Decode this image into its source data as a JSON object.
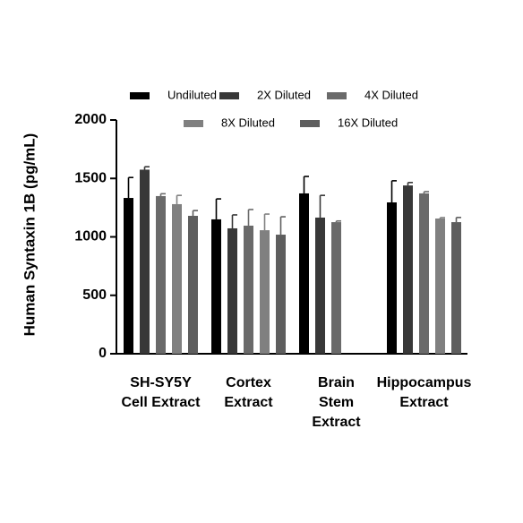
{
  "chart_data": {
    "type": "bar",
    "y_label": "Human Syntaxin 1B (pg/mL)",
    "categories": [
      [
        "SH-SY5Y",
        "Cell Extract"
      ],
      [
        "Cortex",
        "Extract"
      ],
      [
        "Brain",
        "Stem",
        "Extract"
      ],
      [
        "Hippocampus",
        "Extract"
      ]
    ],
    "series": [
      {
        "name": "Undiluted",
        "color": "#000000",
        "values": [
          1333,
          1150,
          1372,
          1295
        ],
        "errors": [
          175,
          175,
          145,
          185
        ]
      },
      {
        "name": "2X Diluted",
        "color": "#383838",
        "values": [
          1575,
          1073,
          1165,
          1440
        ],
        "errors": [
          25,
          115,
          190,
          25
        ]
      },
      {
        "name": "4X Diluted",
        "color": "#6a6a6a",
        "values": [
          1349,
          1096,
          1126,
          1372
        ],
        "errors": [
          20,
          138,
          10,
          15
        ]
      },
      {
        "name": "8X Diluted",
        "color": "#808080",
        "values": [
          1280,
          1057,
          null,
          1157
        ],
        "errors": [
          75,
          138,
          null,
          8
        ]
      },
      {
        "name": "16X Diluted",
        "color": "#5e5e5e",
        "values": [
          1180,
          1019,
          null,
          1126
        ],
        "errors": [
          45,
          153,
          null,
          40
        ]
      }
    ],
    "ylim": [
      0,
      2000
    ],
    "yticks": [
      0,
      500,
      1000,
      1500,
      2000
    ]
  }
}
